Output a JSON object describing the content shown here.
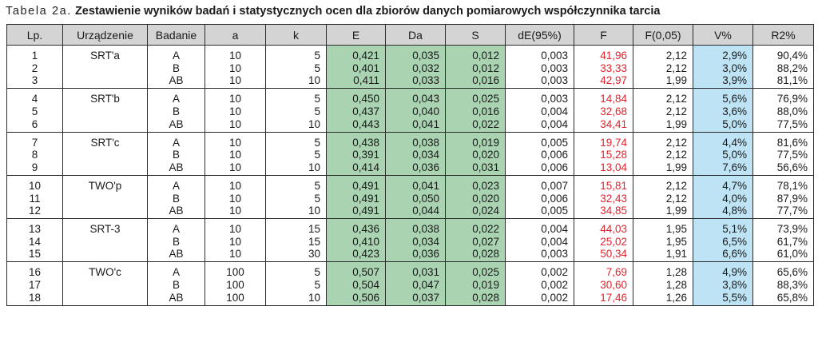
{
  "caption": {
    "label": "Tabela 2a.",
    "title": "Zestawienie wyników badań i statystycznych ocen dla zbiorów danych pomiarowych współczynnika tarcia"
  },
  "colors": {
    "green": "#a9d3b1",
    "blue": "#bde3f5",
    "red": "#e0242f",
    "header": "#d4d4d4"
  },
  "headers": [
    "Lp.",
    "Urządzenie",
    "Badanie",
    "a",
    "k",
    "E",
    "Da",
    "S",
    "dE(95%)",
    "F",
    "F(0,05)",
    "V%",
    "R2%"
  ],
  "groups": [
    {
      "device": "SRT'a",
      "rows": [
        {
          "lp": "1",
          "badanie": "A",
          "a": "10",
          "k": "5",
          "E": "0,421",
          "Da": "0,035",
          "S": "0,012",
          "dE": "0,003",
          "F": "41,96",
          "F005": "2,12",
          "V": "2,9%",
          "R2": "90,4%"
        },
        {
          "lp": "2",
          "badanie": "B",
          "a": "10",
          "k": "5",
          "E": "0,401",
          "Da": "0,032",
          "S": "0,012",
          "dE": "0,003",
          "F": "33,33",
          "F005": "2,12",
          "V": "3,0%",
          "R2": "88,2%"
        },
        {
          "lp": "3",
          "badanie": "AB",
          "a": "10",
          "k": "10",
          "E": "0,411",
          "Da": "0,033",
          "S": "0,016",
          "dE": "0,003",
          "F": "42,97",
          "F005": "1,99",
          "V": "3,9%",
          "R2": "81,1%"
        }
      ]
    },
    {
      "device": "SRT'b",
      "rows": [
        {
          "lp": "4",
          "badanie": "A",
          "a": "10",
          "k": "5",
          "E": "0,450",
          "Da": "0,043",
          "S": "0,025",
          "dE": "0,003",
          "F": "14,84",
          "F005": "2,12",
          "V": "5,6%",
          "R2": "76,9%"
        },
        {
          "lp": "5",
          "badanie": "B",
          "a": "10",
          "k": "5",
          "E": "0,437",
          "Da": "0,040",
          "S": "0,016",
          "dE": "0,004",
          "F": "32,68",
          "F005": "2,12",
          "V": "3,6%",
          "R2": "88,0%"
        },
        {
          "lp": "6",
          "badanie": "AB",
          "a": "10",
          "k": "10",
          "E": "0,443",
          "Da": "0,041",
          "S": "0,022",
          "dE": "0,004",
          "F": "34,41",
          "F005": "1,99",
          "V": "5,0%",
          "R2": "77,5%"
        }
      ]
    },
    {
      "device": "SRT'c",
      "rows": [
        {
          "lp": "7",
          "badanie": "A",
          "a": "10",
          "k": "5",
          "E": "0,438",
          "Da": "0,038",
          "S": "0,019",
          "dE": "0,005",
          "F": "19,74",
          "F005": "2,12",
          "V": "4,4%",
          "R2": "81,6%"
        },
        {
          "lp": "8",
          "badanie": "B",
          "a": "10",
          "k": "5",
          "E": "0,391",
          "Da": "0,034",
          "S": "0,020",
          "dE": "0,006",
          "F": "15,28",
          "F005": "2,12",
          "V": "5,0%",
          "R2": "77,5%"
        },
        {
          "lp": "9",
          "badanie": "AB",
          "a": "10",
          "k": "10",
          "E": "0,414",
          "Da": "0,036",
          "S": "0,031",
          "dE": "0,006",
          "F": "13,04",
          "F005": "1,99",
          "V": "7,6%",
          "R2": "56,6%"
        }
      ]
    },
    {
      "device": "TWO'p",
      "rows": [
        {
          "lp": "10",
          "badanie": "A",
          "a": "10",
          "k": "5",
          "E": "0,491",
          "Da": "0,041",
          "S": "0,023",
          "dE": "0,007",
          "F": "15,81",
          "F005": "2,12",
          "V": "4,7%",
          "R2": "78,1%"
        },
        {
          "lp": "11",
          "badanie": "B",
          "a": "10",
          "k": "5",
          "E": "0,491",
          "Da": "0,050",
          "S": "0,020",
          "dE": "0,006",
          "F": "32,43",
          "F005": "2,12",
          "V": "4,0%",
          "R2": "87,9%"
        },
        {
          "lp": "12",
          "badanie": "AB",
          "a": "10",
          "k": "10",
          "E": "0,491",
          "Da": "0,044",
          "S": "0,024",
          "dE": "0,005",
          "F": "34,85",
          "F005": "1,99",
          "V": "4,8%",
          "R2": "77,7%"
        }
      ]
    },
    {
      "device": "SRT-3",
      "rows": [
        {
          "lp": "13",
          "badanie": "A",
          "a": "10",
          "k": "15",
          "E": "0,436",
          "Da": "0,038",
          "S": "0,022",
          "dE": "0,004",
          "F": "44,03",
          "F005": "1,95",
          "V": "5,1%",
          "R2": "73,9%"
        },
        {
          "lp": "14",
          "badanie": "B",
          "a": "10",
          "k": "15",
          "E": "0,410",
          "Da": "0,034",
          "S": "0,027",
          "dE": "0,004",
          "F": "25,02",
          "F005": "1,95",
          "V": "6,5%",
          "R2": "61,7%"
        },
        {
          "lp": "15",
          "badanie": "AB",
          "a": "10",
          "k": "30",
          "E": "0,423",
          "Da": "0,036",
          "S": "0,028",
          "dE": "0,003",
          "F": "50,34",
          "F005": "1,91",
          "V": "6,6%",
          "R2": "61,0%"
        }
      ]
    },
    {
      "device": "TWO'c",
      "rows": [
        {
          "lp": "16",
          "badanie": "A",
          "a": "100",
          "k": "5",
          "E": "0,507",
          "Da": "0,031",
          "S": "0,025",
          "dE": "0,002",
          "F": "7,69",
          "F005": "1,28",
          "V": "4,9%",
          "R2": "65,6%"
        },
        {
          "lp": "17",
          "badanie": "B",
          "a": "100",
          "k": "5",
          "E": "0,504",
          "Da": "0,047",
          "S": "0,019",
          "dE": "0,002",
          "F": "30,60",
          "F005": "1,28",
          "V": "3,8%",
          "R2": "88,3%"
        },
        {
          "lp": "18",
          "badanie": "AB",
          "a": "100",
          "k": "10",
          "E": "0,506",
          "Da": "0,037",
          "S": "0,028",
          "dE": "0,002",
          "F": "17,46",
          "F005": "1,26",
          "V": "5,5%",
          "R2": "65,8%"
        }
      ]
    }
  ]
}
